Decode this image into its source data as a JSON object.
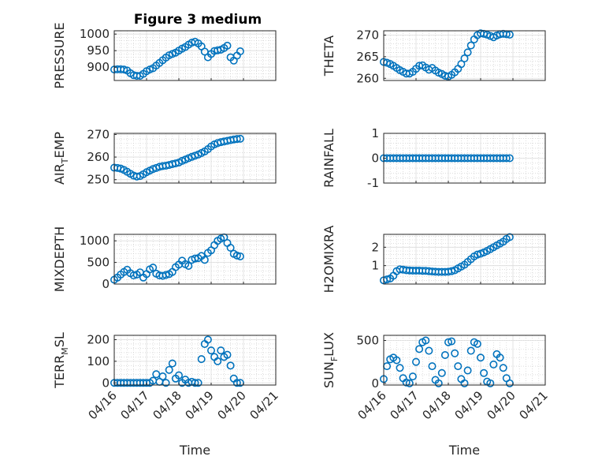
{
  "figure": {
    "title": "Figure 3 medium",
    "series_color": "#0072BD",
    "grid": "minor dotted + major"
  },
  "chart_data": [
    {
      "type": "scatter",
      "ylabel": "PRESSURE",
      "xlabel": "",
      "ylim": [
        860,
        1010
      ],
      "yticks": [
        900,
        950,
        1000
      ],
      "xlim": [
        16,
        21
      ],
      "xticks": [
        "04/16",
        "04/17",
        "04/18",
        "04/19",
        "04/20",
        "04/21"
      ],
      "show_xticklabels": false,
      "x": [
        16.0,
        16.1,
        16.2,
        16.3,
        16.4,
        16.5,
        16.6,
        16.7,
        16.8,
        16.9,
        17.0,
        17.1,
        17.2,
        17.3,
        17.4,
        17.5,
        17.6,
        17.7,
        17.8,
        17.9,
        18.0,
        18.1,
        18.2,
        18.3,
        18.4,
        18.5,
        18.6,
        18.7,
        18.8,
        18.9,
        19.0,
        19.1,
        19.2,
        19.3,
        19.4,
        19.5,
        19.6,
        19.7,
        19.8,
        19.9
      ],
      "y": [
        893,
        894,
        894,
        893,
        890,
        882,
        876,
        874,
        874,
        880,
        888,
        893,
        897,
        905,
        913,
        921,
        929,
        936,
        940,
        944,
        950,
        956,
        961,
        968,
        974,
        977,
        972,
        963,
        947,
        930,
        940,
        949,
        951,
        953,
        958,
        965,
        930,
        920,
        935,
        948
      ]
    },
    {
      "type": "scatter",
      "ylabel": "THETA",
      "xlabel": "",
      "ylim": [
        259.5,
        271
      ],
      "yticks": [
        260,
        265,
        270
      ],
      "xlim": [
        16,
        21
      ],
      "xticks": [
        "04/16",
        "04/17",
        "04/18",
        "04/19",
        "04/20",
        "04/21"
      ],
      "show_xticklabels": false,
      "x": [
        16.0,
        16.1,
        16.2,
        16.3,
        16.4,
        16.5,
        16.6,
        16.7,
        16.8,
        16.9,
        17.0,
        17.1,
        17.2,
        17.3,
        17.4,
        17.5,
        17.6,
        17.7,
        17.8,
        17.9,
        18.0,
        18.1,
        18.2,
        18.3,
        18.4,
        18.5,
        18.6,
        18.7,
        18.8,
        18.9,
        19.0,
        19.1,
        19.2,
        19.3,
        19.4,
        19.5,
        19.6,
        19.7,
        19.8,
        19.9
      ],
      "y": [
        263.8,
        263.6,
        263.3,
        262.9,
        262.4,
        261.9,
        261.5,
        261.1,
        261.1,
        261.5,
        262.2,
        262.9,
        263.0,
        262.5,
        262.0,
        262.4,
        261.8,
        261.3,
        261.0,
        260.6,
        260.4,
        260.8,
        261.4,
        262.2,
        263.3,
        264.6,
        266.0,
        267.6,
        269.0,
        270.0,
        270.4,
        270.3,
        270.1,
        269.8,
        269.5,
        269.9,
        270.2,
        270.3,
        270.2,
        270.1
      ]
    },
    {
      "type": "scatter",
      "ylabel": "AIR_TEMP",
      "xlabel": "",
      "ylim": [
        248.5,
        270.5
      ],
      "yticks": [
        250,
        260,
        270
      ],
      "xlim": [
        16,
        21
      ],
      "xticks": [
        "04/16",
        "04/17",
        "04/18",
        "04/19",
        "04/20",
        "04/21"
      ],
      "show_xticklabels": false,
      "x": [
        16.0,
        16.1,
        16.2,
        16.3,
        16.4,
        16.5,
        16.6,
        16.7,
        16.8,
        16.9,
        17.0,
        17.1,
        17.2,
        17.3,
        17.4,
        17.5,
        17.6,
        17.7,
        17.8,
        17.9,
        18.0,
        18.1,
        18.2,
        18.3,
        18.4,
        18.5,
        18.6,
        18.7,
        18.8,
        18.9,
        19.0,
        19.1,
        19.2,
        19.3,
        19.4,
        19.5,
        19.6,
        19.7,
        19.8,
        19.9
      ],
      "y": [
        255.3,
        255.2,
        254.9,
        254.3,
        253.5,
        252.6,
        251.8,
        251.4,
        251.6,
        252.4,
        253.3,
        254.0,
        254.7,
        255.2,
        255.7,
        256.0,
        256.2,
        256.5,
        256.9,
        257.2,
        257.6,
        258.3,
        258.9,
        259.5,
        260.1,
        260.6,
        261.1,
        261.8,
        262.5,
        263.5,
        264.7,
        265.6,
        266.2,
        266.6,
        266.9,
        267.2,
        267.5,
        267.8,
        268.0,
        268.1
      ]
    },
    {
      "type": "scatter",
      "ylabel": "RAINFALL",
      "xlabel": "",
      "ylim": [
        -1,
        1
      ],
      "yticks": [
        -1,
        0,
        1
      ],
      "xlim": [
        16,
        21
      ],
      "xticks": [
        "04/16",
        "04/17",
        "04/18",
        "04/19",
        "04/20",
        "04/21"
      ],
      "show_xticklabels": false,
      "x": [
        16.0,
        16.1,
        16.2,
        16.3,
        16.4,
        16.5,
        16.6,
        16.7,
        16.8,
        16.9,
        17.0,
        17.1,
        17.2,
        17.3,
        17.4,
        17.5,
        17.6,
        17.7,
        17.8,
        17.9,
        18.0,
        18.1,
        18.2,
        18.3,
        18.4,
        18.5,
        18.6,
        18.7,
        18.8,
        18.9,
        19.0,
        19.1,
        19.2,
        19.3,
        19.4,
        19.5,
        19.6,
        19.7,
        19.8,
        19.9
      ],
      "y": [
        0,
        0,
        0,
        0,
        0,
        0,
        0,
        0,
        0,
        0,
        0,
        0,
        0,
        0,
        0,
        0,
        0,
        0,
        0,
        0,
        0,
        0,
        0,
        0,
        0,
        0,
        0,
        0,
        0,
        0,
        0,
        0,
        0,
        0,
        0,
        0,
        0,
        0,
        0,
        0
      ]
    },
    {
      "type": "scatter",
      "ylabel": "MIXDEPTH",
      "xlabel": "",
      "ylim": [
        0,
        1150
      ],
      "yticks": [
        0,
        500,
        1000
      ],
      "xlim": [
        16,
        21
      ],
      "xticks": [
        "04/16",
        "04/17",
        "04/18",
        "04/19",
        "04/20",
        "04/21"
      ],
      "show_xticklabels": false,
      "x": [
        16.0,
        16.1,
        16.2,
        16.3,
        16.4,
        16.5,
        16.6,
        16.7,
        16.8,
        16.9,
        17.0,
        17.1,
        17.2,
        17.3,
        17.4,
        17.5,
        17.6,
        17.7,
        17.8,
        17.9,
        18.0,
        18.1,
        18.2,
        18.3,
        18.4,
        18.5,
        18.6,
        18.7,
        18.8,
        18.9,
        19.0,
        19.1,
        19.2,
        19.3,
        19.4,
        19.5,
        19.6,
        19.7,
        19.8,
        19.9
      ],
      "y": [
        100,
        150,
        220,
        280,
        330,
        250,
        200,
        220,
        270,
        150,
        230,
        340,
        380,
        240,
        200,
        190,
        210,
        230,
        280,
        390,
        450,
        540,
        460,
        420,
        560,
        590,
        600,
        650,
        560,
        720,
        780,
        900,
        1000,
        1050,
        1080,
        950,
        840,
        700,
        660,
        640
      ]
    },
    {
      "type": "scatter",
      "ylabel": "H2OMIXRA",
      "xlabel": "",
      "ylim": [
        0,
        2.7
      ],
      "yticks": [
        1,
        2
      ],
      "xlim": [
        16,
        21
      ],
      "xticks": [
        "04/16",
        "04/17",
        "04/18",
        "04/19",
        "04/20",
        "04/21"
      ],
      "show_xticklabels": false,
      "x": [
        16.0,
        16.1,
        16.2,
        16.3,
        16.4,
        16.5,
        16.6,
        16.7,
        16.8,
        16.9,
        17.0,
        17.1,
        17.2,
        17.3,
        17.4,
        17.5,
        17.6,
        17.7,
        17.8,
        17.9,
        18.0,
        18.1,
        18.2,
        18.3,
        18.4,
        18.5,
        18.6,
        18.7,
        18.8,
        18.9,
        19.0,
        19.1,
        19.2,
        19.3,
        19.4,
        19.5,
        19.6,
        19.7,
        19.8,
        19.9
      ],
      "y": [
        0.2,
        0.25,
        0.3,
        0.45,
        0.7,
        0.8,
        0.78,
        0.75,
        0.74,
        0.73,
        0.73,
        0.73,
        0.72,
        0.72,
        0.7,
        0.68,
        0.67,
        0.66,
        0.66,
        0.66,
        0.67,
        0.7,
        0.75,
        0.85,
        0.95,
        1.05,
        1.2,
        1.35,
        1.5,
        1.6,
        1.65,
        1.72,
        1.8,
        1.9,
        2.0,
        2.1,
        2.2,
        2.3,
        2.45,
        2.55
      ]
    },
    {
      "type": "scatter",
      "ylabel": "TERR_MSL",
      "xlabel": "Time",
      "ylim": [
        -10,
        220
      ],
      "yticks": [
        0,
        100,
        200
      ],
      "xlim": [
        16,
        21
      ],
      "xticks": [
        "04/16",
        "04/17",
        "04/18",
        "04/19",
        "04/20",
        "04/21"
      ],
      "show_xticklabels": true,
      "x": [
        16.0,
        16.1,
        16.2,
        16.3,
        16.4,
        16.5,
        16.6,
        16.7,
        16.8,
        16.9,
        17.0,
        17.1,
        17.2,
        17.3,
        17.4,
        17.5,
        17.6,
        17.7,
        17.8,
        17.9,
        18.0,
        18.1,
        18.2,
        18.3,
        18.4,
        18.5,
        18.6,
        18.7,
        18.8,
        18.9,
        19.0,
        19.1,
        19.2,
        19.3,
        19.4,
        19.5,
        19.6,
        19.7,
        19.8,
        19.9
      ],
      "y": [
        0,
        0,
        0,
        0,
        0,
        0,
        0,
        0,
        0,
        0,
        0,
        0,
        10,
        40,
        5,
        30,
        0,
        60,
        90,
        20,
        35,
        0,
        15,
        0,
        5,
        0,
        0,
        110,
        180,
        200,
        150,
        120,
        100,
        150,
        120,
        130,
        80,
        20,
        0,
        0
      ]
    },
    {
      "type": "scatter",
      "ylabel": "SUN_FLUX",
      "xlabel": "Time",
      "ylim": [
        -20,
        560
      ],
      "yticks": [
        0,
        500
      ],
      "xlim": [
        16,
        21
      ],
      "xticks": [
        "04/16",
        "04/17",
        "04/18",
        "04/19",
        "04/20",
        "04/21"
      ],
      "show_xticklabels": true,
      "x": [
        16.0,
        16.1,
        16.2,
        16.3,
        16.4,
        16.5,
        16.6,
        16.7,
        16.8,
        16.9,
        17.0,
        17.1,
        17.2,
        17.3,
        17.4,
        17.5,
        17.6,
        17.7,
        17.8,
        17.9,
        18.0,
        18.1,
        18.2,
        18.3,
        18.4,
        18.5,
        18.6,
        18.7,
        18.8,
        18.9,
        19.0,
        19.1,
        19.2,
        19.3,
        19.4,
        19.5,
        19.6,
        19.7,
        19.8,
        19.9
      ],
      "y": [
        50,
        200,
        280,
        300,
        270,
        180,
        60,
        10,
        0,
        80,
        250,
        400,
        480,
        500,
        380,
        200,
        40,
        0,
        120,
        330,
        480,
        490,
        350,
        200,
        50,
        0,
        150,
        380,
        480,
        460,
        300,
        120,
        20,
        0,
        220,
        340,
        300,
        180,
        60,
        0
      ]
    }
  ]
}
